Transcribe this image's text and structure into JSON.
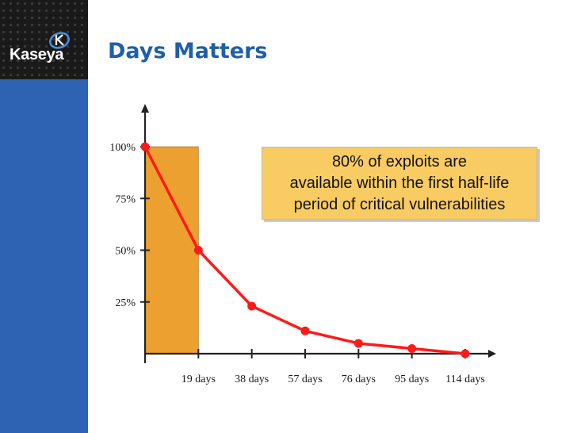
{
  "slide": {
    "title": "Days Matters",
    "logo_text": "Kaseya",
    "brand_color": "#2e63b4",
    "title_color": "#1f5fa8"
  },
  "callout": {
    "text": "80% of exploits are\navailable within the first half-life\nperiod of critical vulnerabilities",
    "background": "#f9cc63"
  },
  "chart_data": {
    "type": "line",
    "x": [
      0,
      19,
      38,
      57,
      76,
      95,
      114
    ],
    "categories": [
      "",
      "19 days",
      "38 days",
      "57 days",
      "76 days",
      "95 days",
      "114 days"
    ],
    "y_ticks": [
      25,
      50,
      75,
      100
    ],
    "y_tick_labels": [
      "25%",
      "50%",
      "75%",
      "100%"
    ],
    "series": [
      {
        "values": [
          100,
          50,
          23,
          11,
          5,
          2.5,
          0
        ],
        "color": "#ff1a1a"
      }
    ],
    "highlight_region": {
      "x_from": 0,
      "x_to": 19,
      "color": "#eba030"
    },
    "xlim": [
      0,
      114
    ],
    "ylim": [
      0,
      100
    ],
    "title": "",
    "xlabel": "",
    "ylabel": "",
    "grid": false
  }
}
